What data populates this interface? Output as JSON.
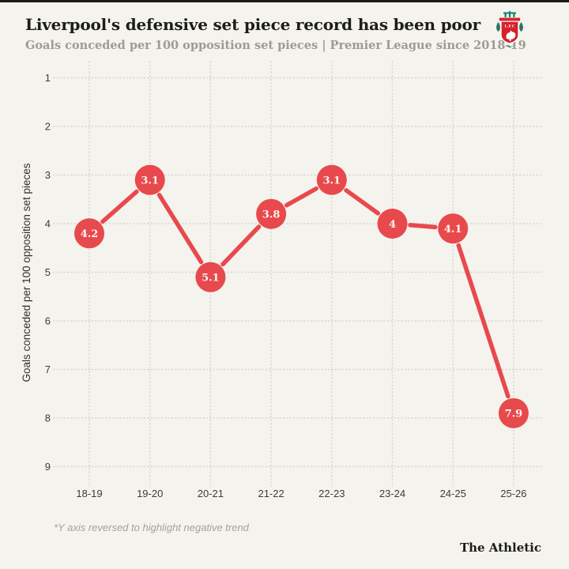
{
  "header": {
    "title": "Liverpool's defensive set piece record has been poor",
    "subtitle": "Goals conceded per 100 opposition set pieces | Premier League since 2018-19",
    "crest": "liverpool-fc-crest"
  },
  "footer": {
    "footnote": "*Y axis reversed to highlight negative trend",
    "brand": "The Athletic"
  },
  "colors": {
    "background": "#f4f3ee",
    "accent_red": "#e8494d",
    "grid": "#d5d5cd",
    "title_text": "#1d1d19",
    "subtitle_text": "#9c9c94",
    "tick_text": "#3b3b37",
    "footnote_text": "#a2a19a",
    "crest_red": "#d5222b",
    "crest_teal": "#00896e"
  },
  "chart_data": {
    "type": "line",
    "title": "Liverpool's defensive set piece record has been poor",
    "subtitle": "Goals conceded per 100 opposition set pieces | Premier League since 2018-19",
    "categories": [
      "18-19",
      "19-20",
      "20-21",
      "21-22",
      "22-23",
      "23-24",
      "24-25",
      "25-26"
    ],
    "series": [
      {
        "name": "Goals conceded per 100 opposition set pieces",
        "values": [
          4.2,
          3.1,
          5.1,
          3.8,
          3.1,
          4.0,
          4.1,
          7.9
        ]
      }
    ],
    "point_labels": [
      "4.2",
      "3.1",
      "5.1",
      "3.8",
      "3.1",
      "4",
      "4.1",
      "7.9"
    ],
    "xlabel": "",
    "ylabel": "Goals conceded per 100 opposition set pieces",
    "ylim": [
      1,
      9
    ],
    "yticks": [
      1,
      2,
      3,
      4,
      5,
      6,
      7,
      8,
      9
    ],
    "y_axis_reversed": true,
    "grid": "dotted horizontal and vertical",
    "legend": false,
    "annotation": "*Y axis reversed to highlight negative trend"
  }
}
